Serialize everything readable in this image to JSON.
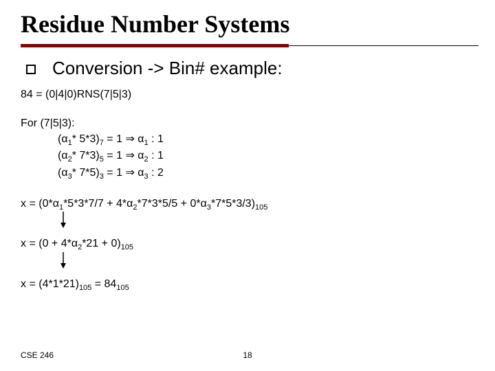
{
  "title": "Residue Number Systems",
  "bullet_text": "Conversion -> Bin# example:",
  "line_rns": "84 = (0|4|0)RNS(7|5|3)",
  "for_header": "For (7|5|3):",
  "for_lines": [
    {
      "pre": "(α",
      "sub": "1",
      "mid": "* 5*3)",
      "b": "7",
      "eq": " = 1 ⇒ α",
      "sub2": "1",
      "post": " : 1"
    },
    {
      "pre": "(α",
      "sub": "2",
      "mid": "* 7*3)",
      "b": "5",
      "eq": " = 1 ⇒ α",
      "sub2": "2",
      "post": " : 1"
    },
    {
      "pre": "(α",
      "sub": "3",
      "mid": "* 7*5)",
      "b": "3",
      "eq": " = 1 ⇒ α",
      "sub2": "3",
      "post": " : 2"
    }
  ],
  "x1": {
    "prefix": "x = (0*α",
    "s1": "1",
    "m1": "*5*3*7/7 + 4*α",
    "s2": "2",
    "m2": "*7*3*5/5 + 0*α",
    "s3": "3",
    "m3": "*7*5*3/3)",
    "fin": "105"
  },
  "x2": {
    "prefix": "x = (0 + 4*α",
    "s1": "2",
    "m1": "*21 + 0)",
    "fin": "105"
  },
  "x3": {
    "prefix": "x = (4*1*21)",
    "s1": "105",
    "mid": " = 84",
    "s2": "105"
  },
  "footer_left": "CSE 246",
  "page_number": "18",
  "colors": {
    "accent": "#8b0000",
    "text": "#000000",
    "bg": "#ffffff"
  }
}
